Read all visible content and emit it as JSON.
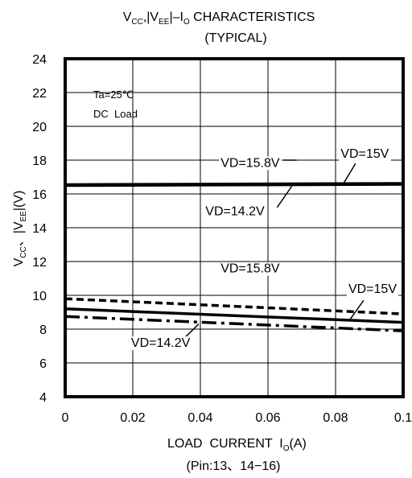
{
  "chart_data": {
    "type": "line",
    "title_parts": {
      "v1": "V",
      "cc": "CC",
      "sep": ",|V",
      "ee": "EE",
      "dash": "|–I",
      "o": "O",
      "rest": "  CHARACTERISTICS"
    },
    "subtitle": "(TYPICAL)",
    "xlabel_parts": {
      "main": "LOAD  CURRENT  I",
      "sub": "O",
      "unit": "(A)"
    },
    "xlabel_note": "(Pin:13、14−16)",
    "ylabel_parts": {
      "v": "V",
      "cc": "CC",
      "sep": "、|V",
      "ee": "EE",
      "unit": "|(V)"
    },
    "xlim": [
      0,
      0.1
    ],
    "ylim": [
      4,
      24
    ],
    "x_ticks": [
      "0",
      "0.02",
      "0.04",
      "0.06",
      "0.08",
      "0.1"
    ],
    "y_ticks": [
      "4",
      "6",
      "8",
      "10",
      "12",
      "14",
      "16",
      "18",
      "20",
      "22",
      "24"
    ],
    "grid": true,
    "annotation": {
      "line1": "Ta=25℃",
      "line2": "DC  Load"
    },
    "series": [
      {
        "name": "VD=15.8V",
        "style": "solid",
        "x": [
          0,
          0.1
        ],
        "y": [
          16.55,
          16.62
        ]
      },
      {
        "name": "VD=15V",
        "style": "solid",
        "x": [
          0,
          0.1
        ],
        "y": [
          16.5,
          16.57
        ]
      },
      {
        "name": "VD=14.2V",
        "style": "dashed",
        "x": [
          0,
          0.1
        ],
        "y": [
          16.52,
          16.58
        ]
      },
      {
        "name": "VD=15.8V",
        "style": "dashed",
        "x": [
          0,
          0.1
        ],
        "y": [
          9.8,
          8.9
        ]
      },
      {
        "name": "VD=15V",
        "style": "solid",
        "x": [
          0,
          0.1
        ],
        "y": [
          9.2,
          8.4
        ]
      },
      {
        "name": "VD=14.2V",
        "style": "dashdot",
        "x": [
          0,
          0.1
        ],
        "y": [
          8.75,
          7.9
        ]
      }
    ],
    "labels": [
      {
        "text": "VD=15.8V",
        "x": 0.046,
        "y": 17.6,
        "anchor": "start"
      },
      {
        "text": "VD=15V",
        "x": 0.0815,
        "y": 18.15,
        "anchor": "start"
      },
      {
        "text": "VD=14.2V",
        "x": 0.0415,
        "y": 14.75,
        "anchor": "start"
      },
      {
        "text": "VD=15.8V",
        "x": 0.046,
        "y": 11.35,
        "anchor": "start"
      },
      {
        "text": "VD=15V",
        "x": 0.0838,
        "y": 10.15,
        "anchor": "start"
      },
      {
        "text": "VD=14.2V",
        "x": 0.0195,
        "y": 6.95,
        "anchor": "start"
      }
    ],
    "leaders": [
      {
        "x1": 0.0646,
        "y1": 18.0,
        "x2": 0.0685,
        "y2": 18.0
      },
      {
        "x1": 0.0859,
        "y1": 17.8,
        "x2": 0.0823,
        "y2": 16.6
      },
      {
        "x1": 0.0627,
        "y1": 15.2,
        "x2": 0.0672,
        "y2": 16.5
      },
      {
        "x1": 0.0883,
        "y1": 9.7,
        "x2": 0.0842,
        "y2": 8.55
      },
      {
        "x1": 0.0354,
        "y1": 7.5,
        "x2": 0.0395,
        "y2": 8.3
      }
    ]
  }
}
